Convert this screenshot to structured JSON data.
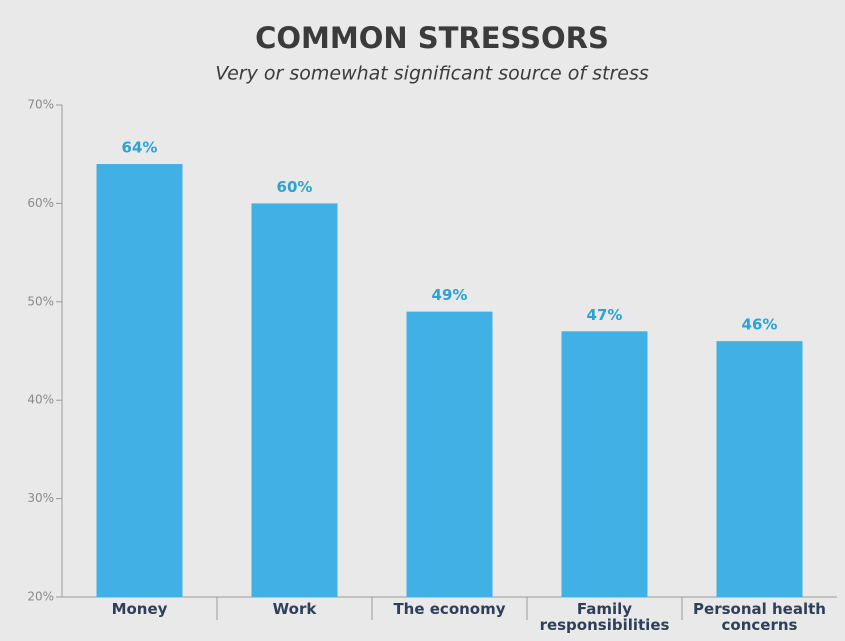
{
  "chart_data": {
    "type": "bar",
    "title": "COMMON STRESSORS",
    "subtitle": "Very or somewhat significant source of stress",
    "categories": [
      "Money",
      "Work",
      "The economy",
      "Family responsibilities",
      "Personal health concerns"
    ],
    "values": [
      64,
      60,
      49,
      47,
      46
    ],
    "value_labels": [
      "64%",
      "60%",
      "49%",
      "47%",
      "46%"
    ],
    "color": "#41b0e4",
    "ylim": [
      20,
      70
    ],
    "yticks": [
      {
        "value": 20,
        "label": "20%"
      },
      {
        "value": 30,
        "label": "30%"
      },
      {
        "value": 40,
        "label": "40%"
      },
      {
        "value": 50,
        "label": "50%"
      },
      {
        "value": 60,
        "label": "60%"
      },
      {
        "value": 70,
        "label": "70%"
      }
    ],
    "grid": false
  }
}
